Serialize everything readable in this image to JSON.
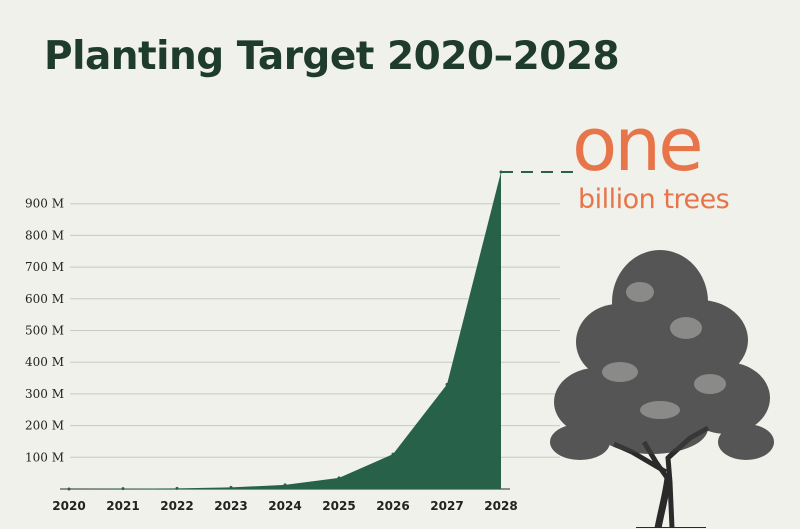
{
  "title": "Planting Target 2020–2028",
  "headline": {
    "big": "one",
    "small": "billion trees"
  },
  "colors": {
    "area": "#28614a",
    "accent": "#e8754a",
    "title": "#1e3b2e",
    "grid": "#c8cbc3"
  },
  "tree": {
    "icon": "tree-illustration-icon"
  },
  "chart_data": {
    "type": "area",
    "x": [
      "2020",
      "2021",
      "2022",
      "2023",
      "2024",
      "2025",
      "2026",
      "2027",
      "2028"
    ],
    "values": [
      0,
      1,
      2,
      5,
      13,
      35,
      110,
      330,
      1000
    ],
    "ylim": [
      0,
      1000
    ],
    "yticks": [
      100,
      200,
      300,
      400,
      500,
      600,
      700,
      800,
      900
    ],
    "ytick_labels": [
      "100 M",
      "200 M",
      "300 M",
      "400 M",
      "500 M",
      "600 M",
      "700 M",
      "800 M",
      "900 M"
    ],
    "grid": true,
    "title": "Planting Target 2020–2028",
    "annotation": "one billion trees"
  }
}
